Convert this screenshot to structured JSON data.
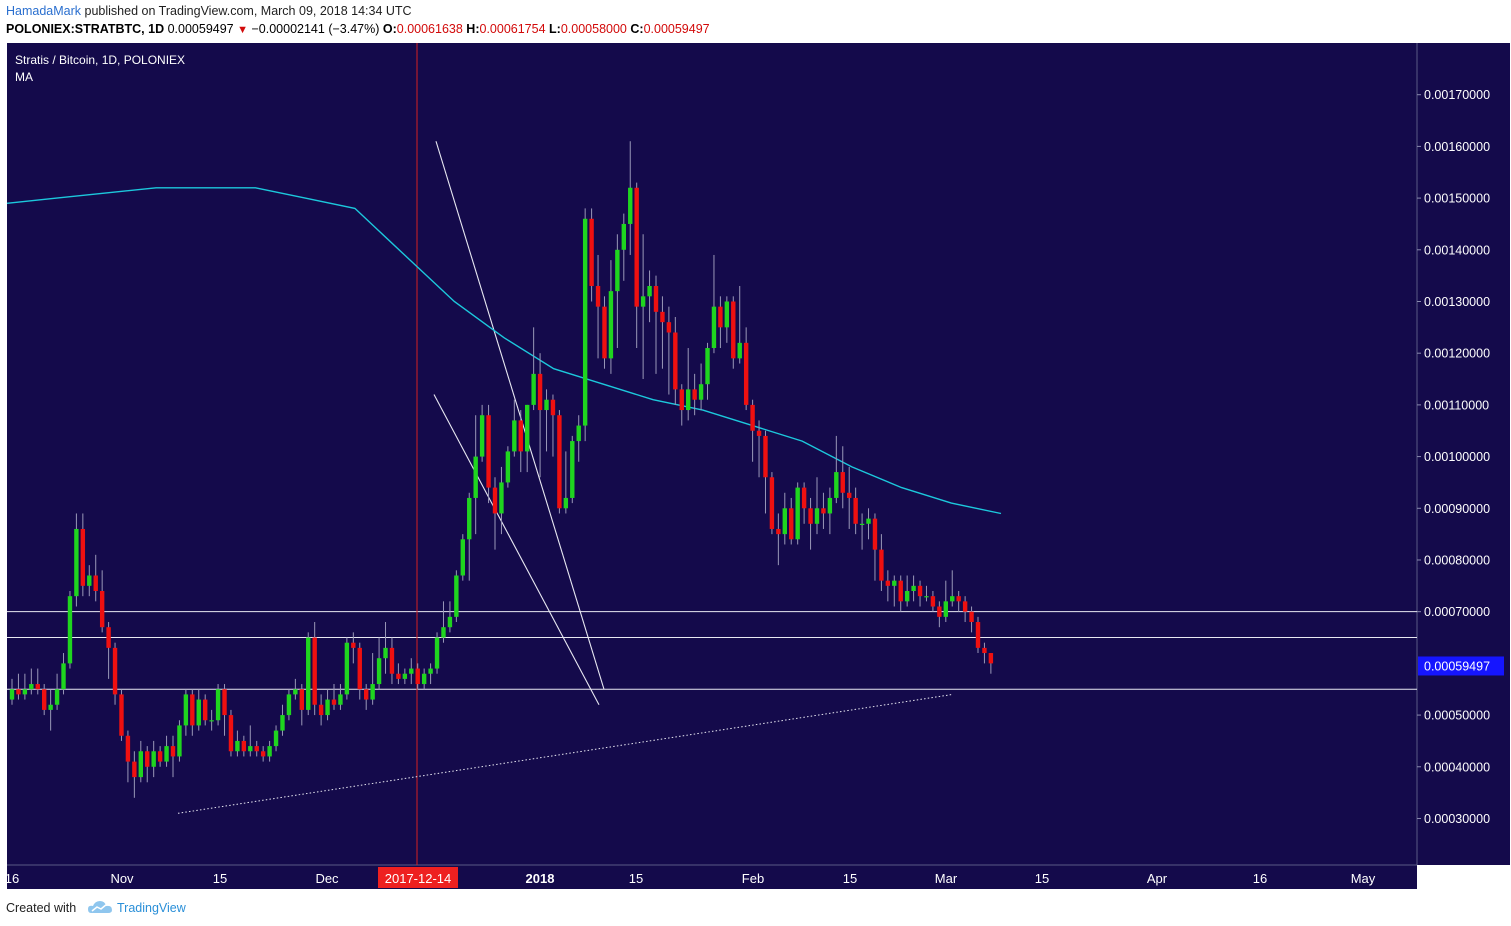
{
  "header": {
    "author": "HamadaMark",
    "published_text": "published on TradingView.com, March 09, 2018 14:34 UTC",
    "symbol": "POLONIEX:STRATBTC, 1D",
    "last": "0.00059497",
    "change_arrow": "▼",
    "change": "−0.00002141 (−3.47%)",
    "o_label": "O:",
    "o_value": "0.00061638",
    "h_label": "H:",
    "h_value": "0.00061754",
    "l_label": "L:",
    "l_value": "0.00058000",
    "c_label": "C:",
    "c_value": "0.00059497"
  },
  "legend": {
    "title": "Stratis / Bitcoin, 1D, POLONIEX",
    "indicator": "MA"
  },
  "footer": {
    "created_with": "Created with",
    "brand": "TradingView"
  },
  "colors": {
    "background": "#140a4b",
    "up": "#1fd51f",
    "down": "#ef1010",
    "ma": "#1cc8dc",
    "lines": "#e8e8f2",
    "price_tag": "#1515ff",
    "date_tag": "#ee2020"
  },
  "chart_data": {
    "type": "candlestick",
    "title": "Stratis / Bitcoin, 1D, POLONIEX",
    "x_tick_labels": [
      "16",
      "Nov",
      "15",
      "Dec",
      "2017-12-14",
      "2018",
      "15",
      "Feb",
      "15",
      "Mar",
      "15",
      "Apr",
      "16",
      "May"
    ],
    "y_tick_labels": [
      "0.00170000",
      "0.00160000",
      "0.00150000",
      "0.00140000",
      "0.00130000",
      "0.00120000",
      "0.00110000",
      "0.00100000",
      "0.00090000",
      "0.00080000",
      "0.00070000",
      "0.00050000",
      "0.00040000",
      "0.00030000"
    ],
    "ylim": [
      0.00021,
      0.0018
    ],
    "last_price": "0.00059497",
    "marked_date": "2017-12-14",
    "horizontal_levels": [
      0.0007,
      0.00065,
      0.00055
    ],
    "grid": false,
    "candles": [
      [
        0.00053,
        0.00055,
        0.00057,
        0.00052
      ],
      [
        0.00055,
        0.00054,
        0.00058,
        0.00053
      ],
      [
        0.00054,
        0.00055,
        0.00058,
        0.00053
      ],
      [
        0.00055,
        0.00056,
        0.00059,
        0.00054
      ],
      [
        0.00056,
        0.00055,
        0.00059,
        0.00054
      ],
      [
        0.00055,
        0.00051,
        0.00056,
        0.0005
      ],
      [
        0.00051,
        0.00052,
        0.00055,
        0.00047
      ],
      [
        0.00052,
        0.00055,
        0.00058,
        0.00051
      ],
      [
        0.00055,
        0.0006,
        0.00062,
        0.00054
      ],
      [
        0.0006,
        0.00073,
        0.00074,
        0.00059
      ],
      [
        0.00073,
        0.00086,
        0.00089,
        0.00071
      ],
      [
        0.00086,
        0.00075,
        0.00089,
        0.00073
      ],
      [
        0.00075,
        0.00077,
        0.00079,
        0.00073
      ],
      [
        0.00077,
        0.00074,
        0.00081,
        0.00072
      ],
      [
        0.00074,
        0.00067,
        0.00078,
        0.00066
      ],
      [
        0.00067,
        0.00063,
        0.00068,
        0.00057
      ],
      [
        0.00063,
        0.00054,
        0.00064,
        0.00052
      ],
      [
        0.00054,
        0.00046,
        0.00055,
        0.00045
      ],
      [
        0.00046,
        0.00041,
        0.00047,
        0.00037
      ],
      [
        0.00041,
        0.00038,
        0.00043,
        0.00034
      ],
      [
        0.00038,
        0.00043,
        0.00045,
        0.00037
      ],
      [
        0.00043,
        0.0004,
        0.00044,
        0.00037
      ],
      [
        0.0004,
        0.00043,
        0.00045,
        0.00038
      ],
      [
        0.00043,
        0.00041,
        0.00044,
        0.0004
      ],
      [
        0.00041,
        0.00044,
        0.00046,
        0.0004
      ],
      [
        0.00044,
        0.00042,
        0.00046,
        0.00038
      ],
      [
        0.00042,
        0.00048,
        0.00049,
        0.00041
      ],
      [
        0.00048,
        0.00054,
        0.00055,
        0.00046
      ],
      [
        0.00054,
        0.00048,
        0.00055,
        0.00046
      ],
      [
        0.00048,
        0.00053,
        0.00055,
        0.00047
      ],
      [
        0.00053,
        0.00049,
        0.00054,
        0.00048
      ],
      [
        0.00049,
        0.00049,
        0.00051,
        0.00047
      ],
      [
        0.00049,
        0.00055,
        0.00056,
        0.00048
      ],
      [
        0.00055,
        0.0005,
        0.00056,
        0.00046
      ],
      [
        0.0005,
        0.00043,
        0.00051,
        0.00042
      ],
      [
        0.00043,
        0.00045,
        0.00047,
        0.00042
      ],
      [
        0.00045,
        0.00043,
        0.00046,
        0.00042
      ],
      [
        0.00043,
        0.00044,
        0.00048,
        0.00042
      ],
      [
        0.00044,
        0.00043,
        0.00045,
        0.00042
      ],
      [
        0.00043,
        0.00042,
        0.00044,
        0.00041
      ],
      [
        0.00042,
        0.00044,
        0.00045,
        0.00041
      ],
      [
        0.00044,
        0.00047,
        0.00048,
        0.00043
      ],
      [
        0.00047,
        0.0005,
        0.00052,
        0.00046
      ],
      [
        0.0005,
        0.00054,
        0.00055,
        0.00049
      ],
      [
        0.00054,
        0.00055,
        0.00057,
        0.00053
      ],
      [
        0.00055,
        0.00051,
        0.00056,
        0.00048
      ],
      [
        0.00051,
        0.00065,
        0.00066,
        0.0005
      ],
      [
        0.00065,
        0.00052,
        0.00068,
        0.0005
      ],
      [
        0.00052,
        0.0005,
        0.00054,
        0.00048
      ],
      [
        0.0005,
        0.00053,
        0.00055,
        0.00049
      ],
      [
        0.00053,
        0.00052,
        0.00056,
        0.00051
      ],
      [
        0.00052,
        0.00054,
        0.00056,
        0.00051
      ],
      [
        0.00054,
        0.00064,
        0.00065,
        0.00053
      ],
      [
        0.00064,
        0.00063,
        0.00066,
        0.0006
      ],
      [
        0.00063,
        0.00055,
        0.00064,
        0.00053
      ],
      [
        0.00055,
        0.00053,
        0.00056,
        0.00051
      ],
      [
        0.00053,
        0.00056,
        0.00062,
        0.00052
      ],
      [
        0.00056,
        0.00061,
        0.00065,
        0.00055
      ],
      [
        0.00061,
        0.00063,
        0.00068,
        0.00058
      ],
      [
        0.00063,
        0.00058,
        0.00065,
        0.00056
      ],
      [
        0.00058,
        0.00057,
        0.0006,
        0.00056
      ],
      [
        0.00057,
        0.00058,
        0.00059,
        0.00056
      ],
      [
        0.00058,
        0.00059,
        0.00061,
        0.00056
      ],
      [
        0.00059,
        0.00056,
        0.0006,
        0.00055
      ],
      [
        0.00056,
        0.00058,
        0.00059,
        0.00055
      ],
      [
        0.00058,
        0.00059,
        0.0006,
        0.00056
      ],
      [
        0.00059,
        0.00065,
        0.00066,
        0.00058
      ],
      [
        0.00065,
        0.00067,
        0.00072,
        0.00064
      ],
      [
        0.00067,
        0.00069,
        0.00072,
        0.00066
      ],
      [
        0.00069,
        0.00077,
        0.00078,
        0.00068
      ],
      [
        0.00077,
        0.00084,
        0.00085,
        0.00076
      ],
      [
        0.00084,
        0.00092,
        0.00093,
        0.00076
      ],
      [
        0.00092,
        0.001,
        0.00108,
        0.00085
      ],
      [
        0.001,
        0.00108,
        0.0011,
        0.00099
      ],
      [
        0.00108,
        0.00094,
        0.0011,
        0.00091
      ],
      [
        0.00094,
        0.00089,
        0.00096,
        0.00082
      ],
      [
        0.00089,
        0.00095,
        0.00098,
        0.00085
      ],
      [
        0.00095,
        0.00101,
        0.00102,
        0.00094
      ],
      [
        0.00101,
        0.00107,
        0.00111,
        0.001
      ],
      [
        0.00107,
        0.00101,
        0.00109,
        0.00097
      ],
      [
        0.00101,
        0.0011,
        0.0011,
        0.00097
      ],
      [
        0.0011,
        0.00116,
        0.00125,
        0.00109
      ],
      [
        0.00116,
        0.00109,
        0.0012,
        0.00096
      ],
      [
        0.00109,
        0.00111,
        0.00113,
        0.00101
      ],
      [
        0.00111,
        0.00108,
        0.00112,
        0.001
      ],
      [
        0.00108,
        0.0009,
        0.00109,
        0.00089
      ],
      [
        0.0009,
        0.00092,
        0.00101,
        0.00089
      ],
      [
        0.00092,
        0.00103,
        0.00104,
        0.00091
      ],
      [
        0.00103,
        0.00106,
        0.00108,
        0.00099
      ],
      [
        0.00106,
        0.00146,
        0.00148,
        0.00103
      ],
      [
        0.00146,
        0.00133,
        0.00148,
        0.0013
      ],
      [
        0.00133,
        0.00129,
        0.00139,
        0.00119
      ],
      [
        0.00129,
        0.00119,
        0.00131,
        0.00117
      ],
      [
        0.00119,
        0.00132,
        0.00138,
        0.00116
      ],
      [
        0.00132,
        0.0014,
        0.00143,
        0.00121
      ],
      [
        0.0014,
        0.00145,
        0.00147,
        0.00134
      ],
      [
        0.00145,
        0.00152,
        0.00161,
        0.00139
      ],
      [
        0.00152,
        0.00129,
        0.00153,
        0.00121
      ],
      [
        0.00129,
        0.00131,
        0.00143,
        0.00115
      ],
      [
        0.00131,
        0.00133,
        0.00136,
        0.00126
      ],
      [
        0.00133,
        0.00128,
        0.00135,
        0.00116
      ],
      [
        0.00128,
        0.00126,
        0.00131,
        0.00117
      ],
      [
        0.00126,
        0.00124,
        0.00129,
        0.00112
      ],
      [
        0.00124,
        0.00113,
        0.00127,
        0.0011
      ],
      [
        0.00113,
        0.00109,
        0.00114,
        0.00106
      ],
      [
        0.00109,
        0.00113,
        0.00121,
        0.00107
      ],
      [
        0.00113,
        0.00111,
        0.00116,
        0.00108
      ],
      [
        0.00111,
        0.00114,
        0.00118,
        0.00109
      ],
      [
        0.00114,
        0.00121,
        0.00122,
        0.00111
      ],
      [
        0.00121,
        0.00129,
        0.00139,
        0.0012
      ],
      [
        0.00129,
        0.00125,
        0.00131,
        0.00121
      ],
      [
        0.00125,
        0.0013,
        0.00131,
        0.00122
      ],
      [
        0.0013,
        0.00119,
        0.00131,
        0.00117
      ],
      [
        0.00119,
        0.00122,
        0.00133,
        0.00118
      ],
      [
        0.00122,
        0.0011,
        0.00125,
        0.00109
      ],
      [
        0.0011,
        0.00105,
        0.00111,
        0.00099
      ],
      [
        0.00105,
        0.00104,
        0.00107,
        0.00096
      ],
      [
        0.00104,
        0.00096,
        0.00105,
        0.00089
      ],
      [
        0.00096,
        0.00086,
        0.00097,
        0.00085
      ],
      [
        0.00086,
        0.00085,
        0.00089,
        0.00079
      ],
      [
        0.00085,
        0.0009,
        0.00093,
        0.00083
      ],
      [
        0.0009,
        0.00084,
        0.00092,
        0.00083
      ],
      [
        0.00084,
        0.00094,
        0.00095,
        0.00083
      ],
      [
        0.00094,
        0.0009,
        0.00095,
        0.00087
      ],
      [
        0.0009,
        0.00087,
        0.00092,
        0.00082
      ],
      [
        0.00087,
        0.0009,
        0.00096,
        0.00085
      ],
      [
        0.0009,
        0.00089,
        0.00093,
        0.00086
      ],
      [
        0.00089,
        0.00092,
        0.00094,
        0.00085
      ],
      [
        0.00092,
        0.00097,
        0.00104,
        0.00091
      ],
      [
        0.00097,
        0.00093,
        0.00102,
        0.0009
      ],
      [
        0.00093,
        0.00092,
        0.00098,
        0.00086
      ],
      [
        0.00092,
        0.00087,
        0.00094,
        0.00085
      ],
      [
        0.00087,
        0.00087,
        0.00089,
        0.00082
      ],
      [
        0.00087,
        0.00088,
        0.0009,
        0.00084
      ],
      [
        0.00088,
        0.00082,
        0.00089,
        0.00076
      ],
      [
        0.00082,
        0.00076,
        0.00085,
        0.00074
      ],
      [
        0.00076,
        0.00075,
        0.00078,
        0.00072
      ],
      [
        0.00075,
        0.00076,
        0.00077,
        0.00071
      ],
      [
        0.00076,
        0.00072,
        0.00077,
        0.0007
      ],
      [
        0.00072,
        0.00074,
        0.00077,
        0.00071
      ],
      [
        0.00074,
        0.00075,
        0.00077,
        0.00072
      ],
      [
        0.00075,
        0.00073,
        0.00076,
        0.00071
      ],
      [
        0.00073,
        0.00073,
        0.00075,
        0.00072
      ],
      [
        0.00073,
        0.00071,
        0.00074,
        0.0007
      ],
      [
        0.00071,
        0.00069,
        0.00072,
        0.00067
      ],
      [
        0.00069,
        0.00072,
        0.00076,
        0.00068
      ],
      [
        0.00072,
        0.00073,
        0.00078,
        0.00071
      ],
      [
        0.00073,
        0.00072,
        0.00074,
        0.0007
      ],
      [
        0.00072,
        0.0007,
        0.00073,
        0.00068
      ],
      [
        0.0007,
        0.00068,
        0.00071,
        0.00066
      ],
      [
        0.00068,
        0.00063,
        0.00069,
        0.00062
      ],
      [
        0.00063,
        0.00062,
        0.00064,
        0.0006
      ],
      [
        0.00062,
        0.0006,
        0.00062,
        0.00058
      ]
    ],
    "ma_series": [
      0.00149,
      0.0015,
      0.00151,
      0.00152,
      0.00152,
      0.00152,
      0.0015,
      0.00148,
      0.00139,
      0.0013,
      0.00123,
      0.00117,
      0.00114,
      0.00111,
      0.00109,
      0.00106,
      0.00103,
      0.00098,
      0.00094,
      0.00091,
      0.00089
    ],
    "trendlines": [
      {
        "name": "channel-upper",
        "from": [
          -1.04,
          0.00161
        ],
        "to": [
          0.64,
          0.00055
        ]
      },
      {
        "name": "channel-lower",
        "from": [
          -1.06,
          0.00112
        ],
        "to": [
          0.59,
          0.00052
        ]
      },
      {
        "name": "long-support",
        "from": [
          -3.62,
          0.00031
        ],
        "to": [
          4.13,
          0.00054
        ],
        "style": "dotted"
      }
    ]
  }
}
